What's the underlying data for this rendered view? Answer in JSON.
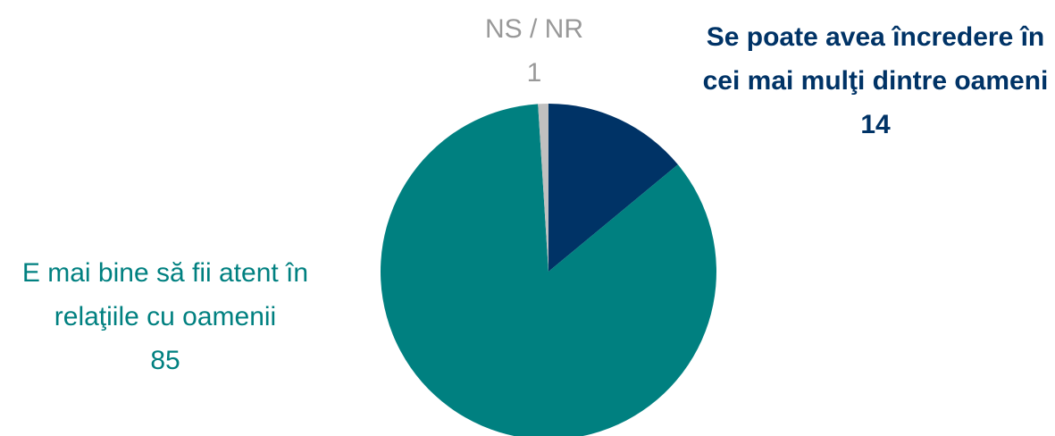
{
  "chart_data": {
    "type": "pie",
    "categories": [
      "Se poate avea încredere în cei mai mulţi dintre oameni",
      "E mai bine să fii atent în relaţiile cu oamenii",
      "NS / NR"
    ],
    "values": [
      14,
      85,
      1
    ],
    "colors": [
      "#003366",
      "#008080",
      "#c0c0c0"
    ]
  }
}
